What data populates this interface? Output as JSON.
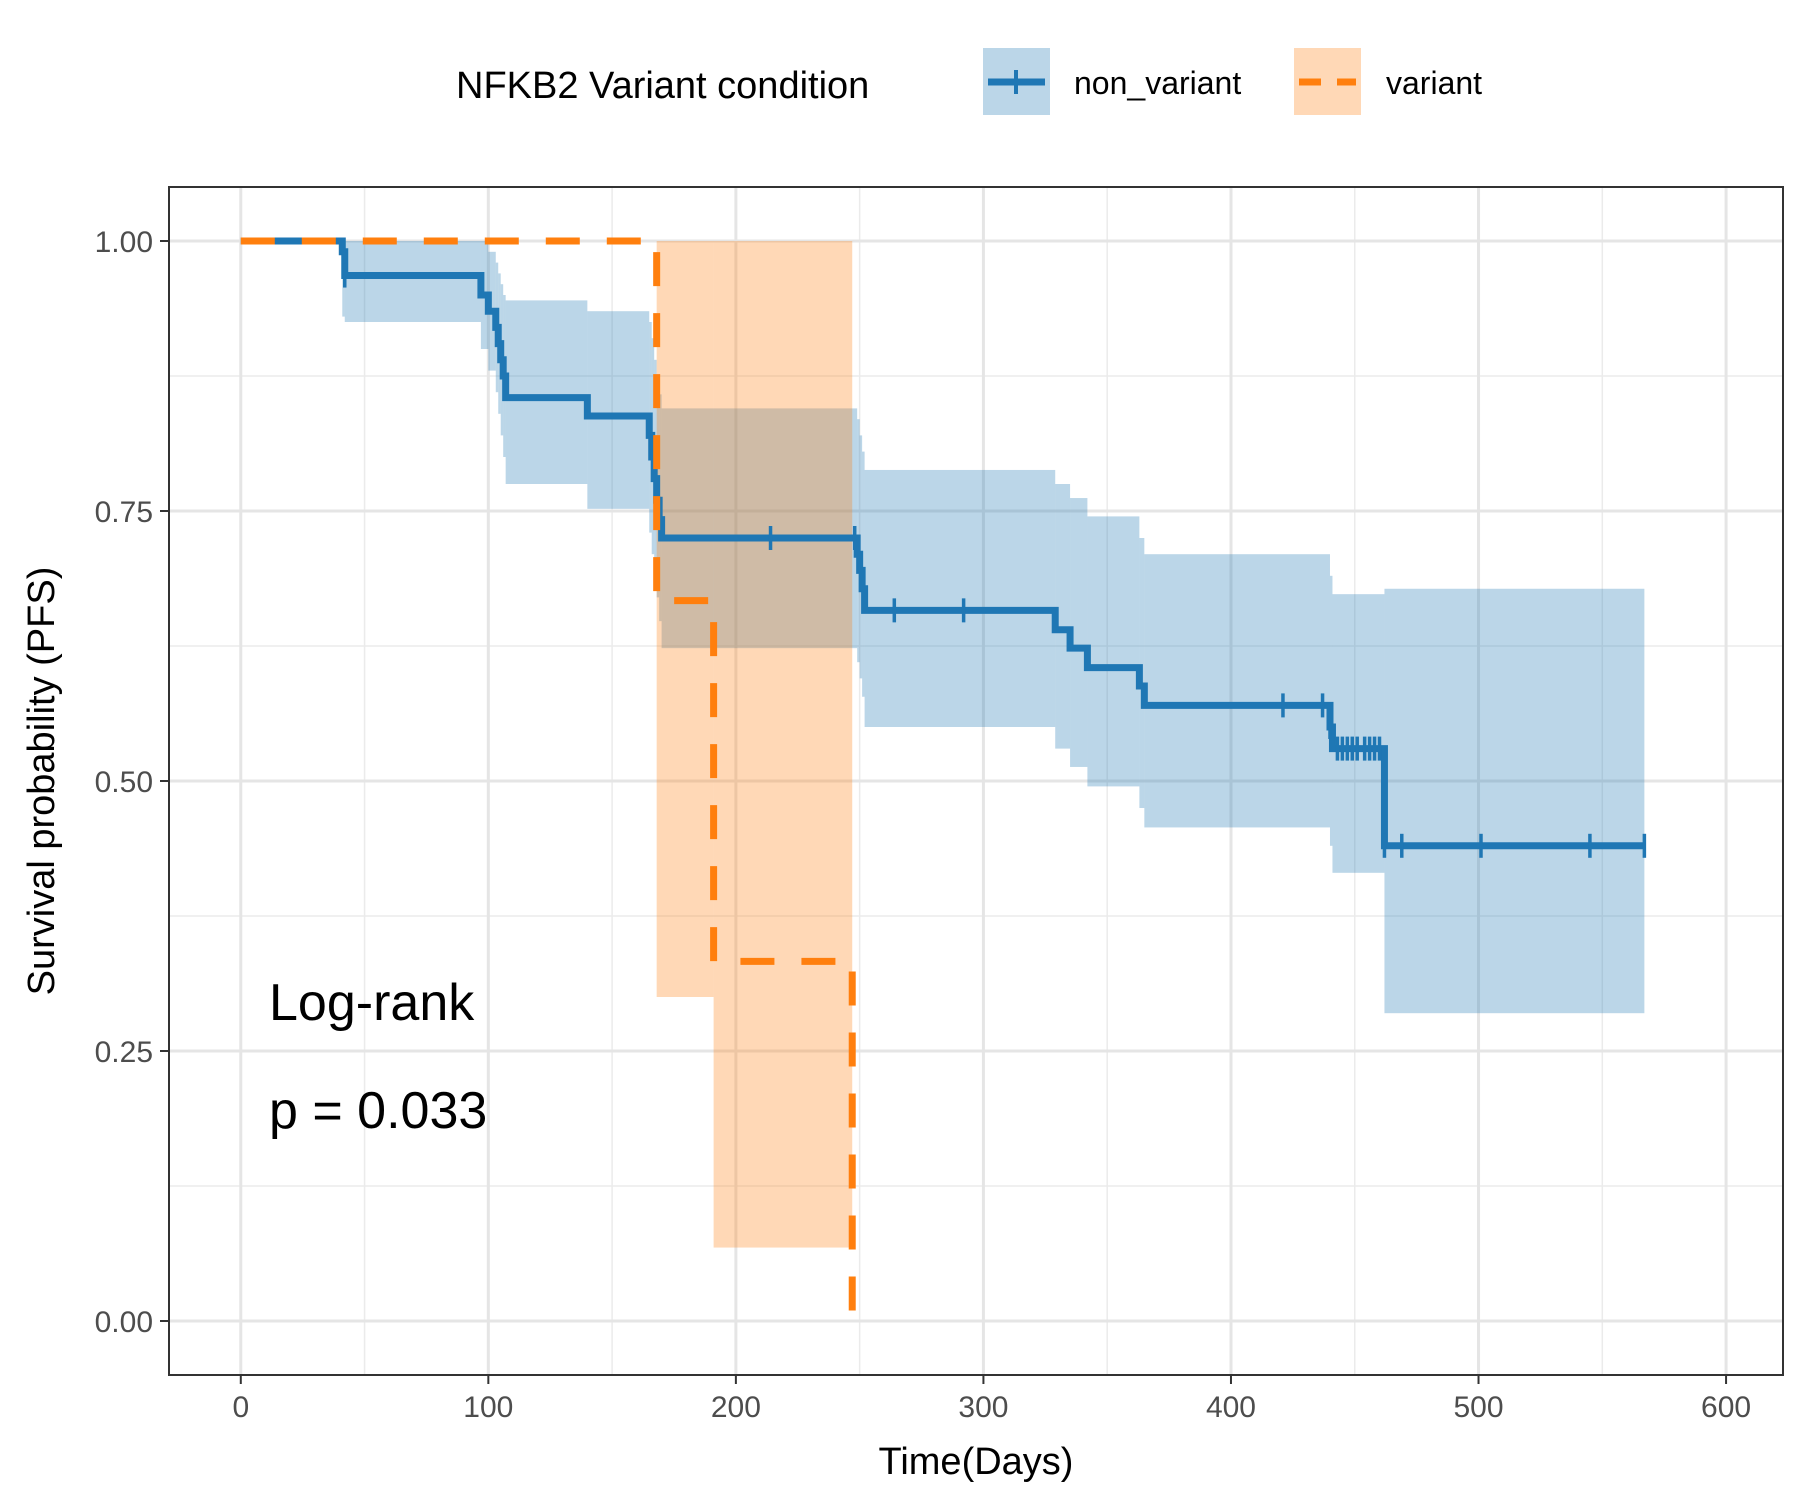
{
  "chart_data": {
    "type": "line",
    "title": "",
    "xlabel": "Time(Days)",
    "ylabel": "Survival probability (PFS)",
    "xlim": [
      -29,
      623
    ],
    "ylim": [
      -0.05,
      1.05
    ],
    "xticks": [
      0,
      100,
      200,
      300,
      400,
      500,
      600
    ],
    "xtick_labels": [
      "0",
      "100",
      "200",
      "300",
      "400",
      "500",
      "600"
    ],
    "yticks": [
      0,
      0.25,
      0.5,
      0.75,
      1
    ],
    "ytick_labels": [
      "0.00",
      "0.25",
      "0.50",
      "0.75",
      "1.00"
    ],
    "grid": true,
    "legend": {
      "title": "NFKB2 Variant condition",
      "position": "top",
      "entries": [
        "non_variant",
        "variant"
      ]
    },
    "annotations": [
      "Log-rank",
      "p = 0.033"
    ],
    "colors": {
      "non_variant": "#1f77b4",
      "variant": "#ff7f0e"
    },
    "series": [
      {
        "name": "non_variant",
        "line_style": "solid",
        "steps": [
          {
            "x": 0,
            "y": 1.0,
            "lower": 1.0,
            "upper": 1.0
          },
          {
            "x": 41,
            "y": 0.99,
            "lower": 0.93,
            "upper": 1.0
          },
          {
            "x": 42,
            "y": 0.968,
            "lower": 0.925,
            "upper": 1.0
          },
          {
            "x": 97,
            "y": 0.95,
            "lower": 0.9,
            "upper": 1.0
          },
          {
            "x": 100,
            "y": 0.935,
            "lower": 0.88,
            "upper": 0.99
          },
          {
            "x": 103,
            "y": 0.92,
            "lower": 0.86,
            "upper": 0.98
          },
          {
            "x": 104,
            "y": 0.905,
            "lower": 0.84,
            "upper": 0.97
          },
          {
            "x": 105,
            "y": 0.89,
            "lower": 0.82,
            "upper": 0.96
          },
          {
            "x": 106,
            "y": 0.875,
            "lower": 0.8,
            "upper": 0.95
          },
          {
            "x": 107,
            "y": 0.855,
            "lower": 0.775,
            "upper": 0.945
          },
          {
            "x": 140,
            "y": 0.838,
            "lower": 0.752,
            "upper": 0.935
          },
          {
            "x": 165,
            "y": 0.82,
            "lower": 0.73,
            "upper": 0.925
          },
          {
            "x": 166,
            "y": 0.8,
            "lower": 0.71,
            "upper": 0.91
          },
          {
            "x": 167,
            "y": 0.78,
            "lower": 0.69,
            "upper": 0.89
          },
          {
            "x": 168,
            "y": 0.76,
            "lower": 0.67,
            "upper": 0.87
          },
          {
            "x": 169,
            "y": 0.742,
            "lower": 0.648,
            "upper": 0.858
          },
          {
            "x": 170,
            "y": 0.725,
            "lower": 0.623,
            "upper": 0.845
          },
          {
            "x": 249,
            "y": 0.71,
            "lower": 0.61,
            "upper": 0.835
          },
          {
            "x": 250,
            "y": 0.695,
            "lower": 0.595,
            "upper": 0.82
          },
          {
            "x": 251,
            "y": 0.678,
            "lower": 0.578,
            "upper": 0.805
          },
          {
            "x": 252,
            "y": 0.658,
            "lower": 0.55,
            "upper": 0.788
          },
          {
            "x": 329,
            "y": 0.64,
            "lower": 0.53,
            "upper": 0.775
          },
          {
            "x": 335,
            "y": 0.623,
            "lower": 0.513,
            "upper": 0.762
          },
          {
            "x": 342,
            "y": 0.605,
            "lower": 0.495,
            "upper": 0.745
          },
          {
            "x": 363,
            "y": 0.588,
            "lower": 0.475,
            "upper": 0.725
          },
          {
            "x": 365,
            "y": 0.57,
            "lower": 0.457,
            "upper": 0.71
          },
          {
            "x": 440,
            "y": 0.55,
            "lower": 0.44,
            "upper": 0.69
          },
          {
            "x": 441,
            "y": 0.53,
            "lower": 0.415,
            "upper": 0.673
          },
          {
            "x": 462,
            "y": 0.44,
            "lower": 0.285,
            "upper": 0.678
          }
        ],
        "end_x": 567,
        "censor_x": [
          42,
          214,
          248,
          264,
          292,
          421,
          437,
          440,
          443,
          445,
          447,
          449,
          451,
          454,
          456,
          458,
          460,
          462,
          469,
          501,
          545,
          567
        ]
      },
      {
        "name": "variant",
        "line_style": "dashed",
        "steps": [
          {
            "x": 0,
            "y": 1.0,
            "lower": 1.0,
            "upper": 1.0
          },
          {
            "x": 168,
            "y": 0.667,
            "lower": 0.3,
            "upper": 1.0
          },
          {
            "x": 191,
            "y": 0.333,
            "lower": 0.068,
            "upper": 1.0
          },
          {
            "x": 247,
            "y": 0.0,
            "lower": 0.0,
            "upper": 0.0
          }
        ],
        "end_x": 247,
        "censor_x": []
      }
    ]
  }
}
